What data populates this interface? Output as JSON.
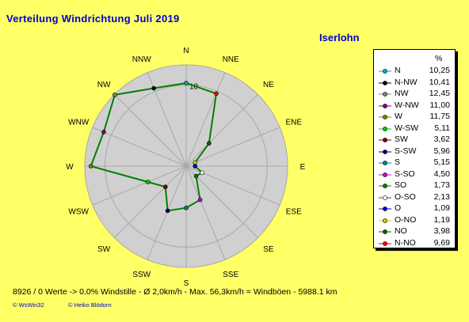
{
  "title": "Verteilung Windrichtung    Juli 2019",
  "location": "Iserlohn",
  "legend_unit": "%",
  "footer": "8926 / 0 Werte  -> 0.0% Windstille   -   Ø 2,0km/h  -  Max. 56,3km/h = Windböen   -   5988.1 km",
  "credits": [
    "© WsWin32",
    "© Heiko Blödorn"
  ],
  "colors": {
    "background": "#ffff66",
    "plot_disc": "#d0d0d0",
    "grid": "#a8a8a8",
    "line": "#008000",
    "title": "#0000cc"
  },
  "chart_data": {
    "type": "radar",
    "title": "Verteilung Windrichtung    Juli 2019",
    "subtitle": "Iserlohn",
    "unit": "%",
    "rmax": 12.5,
    "ring_label": "10",
    "axis_labels": [
      "N",
      "NNE",
      "NE",
      "ENE",
      "E",
      "ESE",
      "SE",
      "SSE",
      "S",
      "SSW",
      "SW",
      "WSW",
      "W",
      "WNW",
      "NW",
      "NNW"
    ],
    "series": {
      "values": [
        10.25,
        9.69,
        3.98,
        1.19,
        1.09,
        2.13,
        1.73,
        4.5,
        5.15,
        5.96,
        3.62,
        5.11,
        11.75,
        11.0,
        12.45,
        10.41
      ]
    },
    "legend": [
      {
        "label": "N",
        "value": "10,25",
        "color": "#00b0b0"
      },
      {
        "label": "N-NW",
        "value": "10,41",
        "color": "#000000"
      },
      {
        "label": "NW",
        "value": "12,45",
        "color": "#808080"
      },
      {
        "label": "W-NW",
        "value": "11,00",
        "color": "#800080"
      },
      {
        "label": "W",
        "value": "11,75",
        "color": "#808000"
      },
      {
        "label": "W-SW",
        "value": "5,11",
        "color": "#00cc00"
      },
      {
        "label": "SW",
        "value": "3,62",
        "color": "#800000"
      },
      {
        "label": "S-SW",
        "value": "5,96",
        "color": "#000080"
      },
      {
        "label": "S",
        "value": "5,15",
        "color": "#008080"
      },
      {
        "label": "S-SO",
        "value": "4,50",
        "color": "#cc00cc"
      },
      {
        "label": "SO",
        "value": "1,73",
        "color": "#008000"
      },
      {
        "label": "O-SO",
        "value": "2,13",
        "color": "#ffffff"
      },
      {
        "label": "O",
        "value": "1,09",
        "color": "#0000cc"
      },
      {
        "label": "O-NO",
        "value": "1,19",
        "color": "#cccc00"
      },
      {
        "label": "NO",
        "value": "3,98",
        "color": "#006400"
      },
      {
        "label": "N-NO",
        "value": "9,69",
        "color": "#ff0000"
      }
    ]
  }
}
